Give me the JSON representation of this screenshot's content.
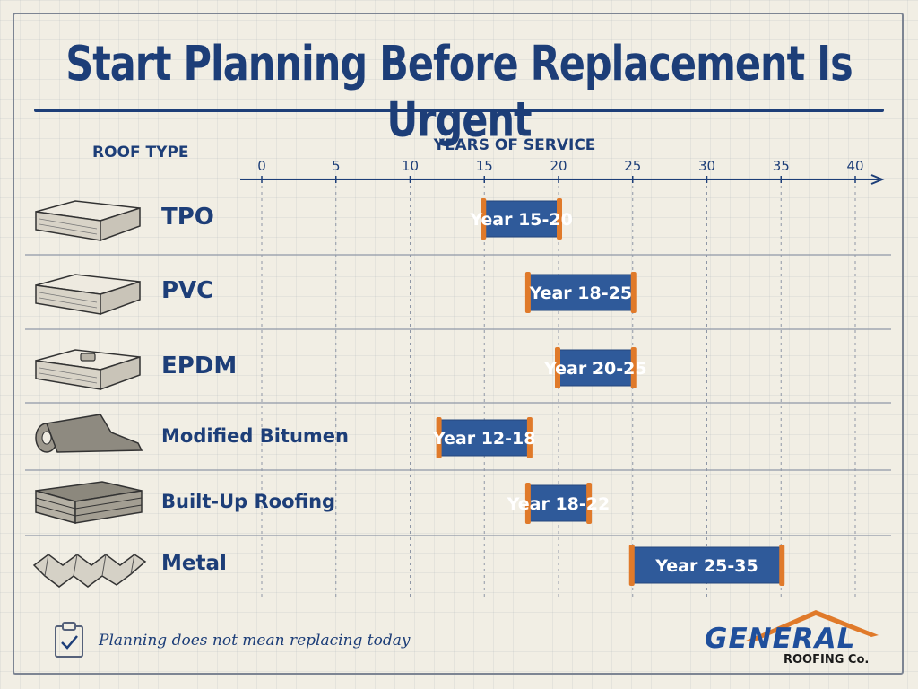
{
  "title": "Start Planning Before Replacement Is Urgent",
  "chart_data": {
    "type": "bar",
    "orientation": "horizontal-range",
    "title": "Start Planning Before Replacement Is Urgent",
    "xlabel": "YEARS OF SERVICE",
    "ylabel": "ROOF TYPE",
    "xlim": [
      0,
      40
    ],
    "xticks": [
      0,
      5,
      10,
      15,
      20,
      25,
      30,
      35,
      40
    ],
    "grid": true,
    "categories": [
      "TPO",
      "PVC",
      "EPDM",
      "Modified Bitumen",
      "Built-Up Roofing",
      "Metal"
    ],
    "ranges": [
      {
        "category": "TPO",
        "start": 15,
        "end": 20,
        "label": "Year 15-20"
      },
      {
        "category": "PVC",
        "start": 18,
        "end": 25,
        "label": "Year 18-25"
      },
      {
        "category": "EPDM",
        "start": 20,
        "end": 25,
        "label": "Year 20-25"
      },
      {
        "category": "Modified Bitumen",
        "start": 12,
        "end": 18,
        "label": "Year 12-18"
      },
      {
        "category": "Built-Up Roofing",
        "start": 18,
        "end": 22,
        "label": "Year 18-22"
      },
      {
        "category": "Metal",
        "start": 25,
        "end": 35,
        "label": "Year 25-35"
      }
    ]
  },
  "footer": {
    "note": "Planning does not mean replacing today"
  },
  "logo": {
    "name": "GENERAL",
    "sub": "ROOFING Co."
  },
  "colors": {
    "bar": "#2f5a9a",
    "bar_cap": "#e07a2a",
    "text": "#1d3e78"
  },
  "icons": {
    "footer": "clipboard-check-icon",
    "rows": [
      "membrane-slab-icon",
      "membrane-slab-icon",
      "membrane-slab-icon",
      "roll-icon",
      "layered-gravel-icon",
      "corrugated-metal-icon"
    ]
  }
}
